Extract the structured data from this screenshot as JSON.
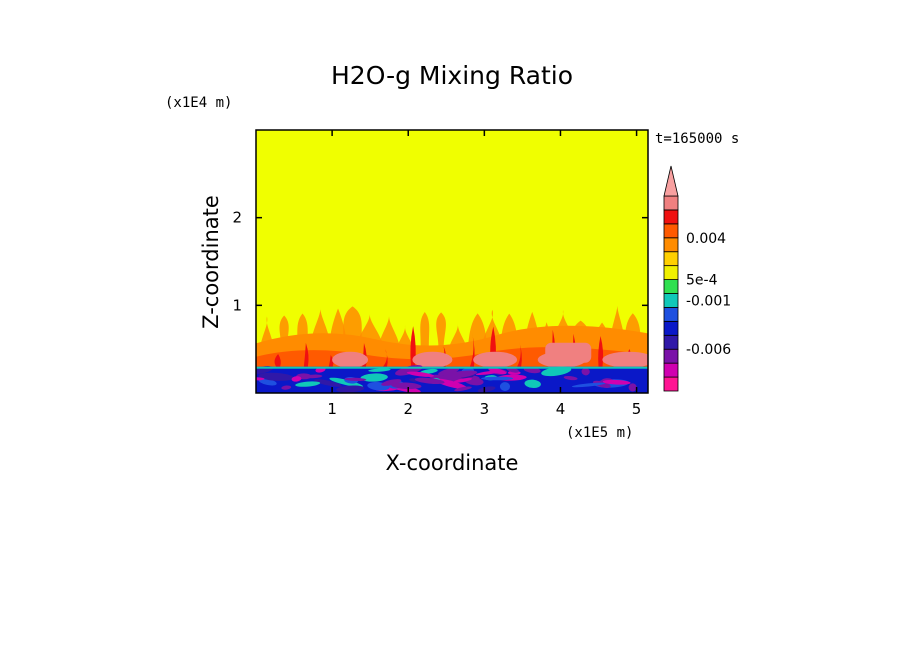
{
  "chart_data": {
    "type": "heatmap",
    "title": "H2O-g Mixing Ratio",
    "xlabel": "X-coordinate",
    "ylabel": "Z-coordinate",
    "x_unit": "(x1E5 m)",
    "z_unit": "(x1E4 m)",
    "time_label": "t=165000 s",
    "xlim": [
      0,
      5.15
    ],
    "zlim": [
      0,
      3
    ],
    "x_ticks": [
      1,
      2,
      3,
      4,
      5
    ],
    "z_ticks": [
      1,
      2
    ],
    "colorbar": {
      "labels": [
        {
          "text": "0.004",
          "value": 0.004
        },
        {
          "text": "5e-4",
          "value": 0.0005
        },
        {
          "text": "-0.001",
          "value": -0.001
        },
        {
          "text": "-0.006",
          "value": -0.006
        }
      ],
      "levels": [
        {
          "color": "#ff1493"
        },
        {
          "color": "#d000b0"
        },
        {
          "color": "#7a12a8"
        },
        {
          "color": "#3018a8"
        },
        {
          "color": "#0a18c8"
        },
        {
          "color": "#1e50e0"
        },
        {
          "color": "#10c8b8"
        },
        {
          "color": "#30e050"
        },
        {
          "color": "#f0f000"
        },
        {
          "color": "#ffd000"
        },
        {
          "color": "#ff8c00"
        },
        {
          "color": "#ff5a00"
        },
        {
          "color": "#f01010"
        },
        {
          "color": "#f08080"
        }
      ],
      "overflow_color": "#f8a0a0"
    },
    "fields": {
      "background_color": "#f0ff00",
      "moist_layer_top": 1.0,
      "surface_layer_top": 0.3
    }
  }
}
